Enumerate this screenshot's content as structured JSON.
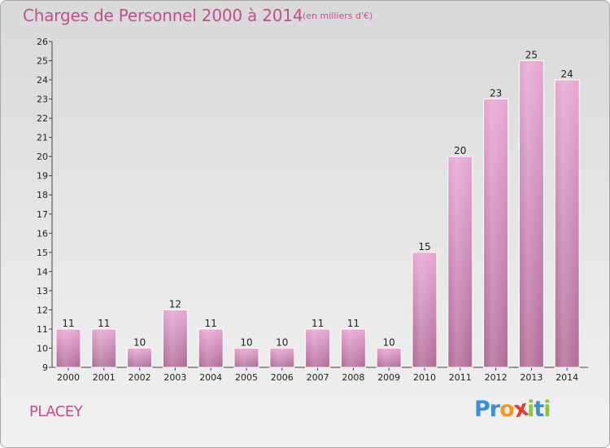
{
  "chart_data": {
    "type": "bar",
    "title": "Charges de Personnel 2000 à 2014",
    "subtitle": "(en milliers d'€)",
    "categories": [
      "2000",
      "2001",
      "2002",
      "2003",
      "2004",
      "2005",
      "2006",
      "2007",
      "2008",
      "2009",
      "2010",
      "2011",
      "2012",
      "2013",
      "2014"
    ],
    "values": [
      11,
      11,
      10,
      12,
      11,
      10,
      10,
      11,
      11,
      10,
      15,
      20,
      23,
      25,
      24
    ],
    "ylim": [
      9,
      26
    ],
    "yticks": [
      9,
      10,
      11,
      12,
      13,
      14,
      15,
      16,
      17,
      18,
      19,
      20,
      21,
      22,
      23,
      24,
      25,
      26
    ],
    "xlabel": "",
    "ylabel": "",
    "grid": false,
    "bar_color": "#d98ac0"
  },
  "footer": {
    "commune": "PLACEY",
    "logo_letters": [
      {
        "ch": "P",
        "color": "#3a8fd6"
      },
      {
        "ch": "r",
        "color": "#3a8fd6"
      },
      {
        "ch": "o",
        "color": "#f39a1e"
      },
      {
        "ch": "x",
        "color": "#e23b2c"
      },
      {
        "ch": "i",
        "color": "#8cc63e"
      },
      {
        "ch": "t",
        "color": "#3a8fd6"
      },
      {
        "ch": "i",
        "color": "#8cc63e"
      }
    ]
  }
}
